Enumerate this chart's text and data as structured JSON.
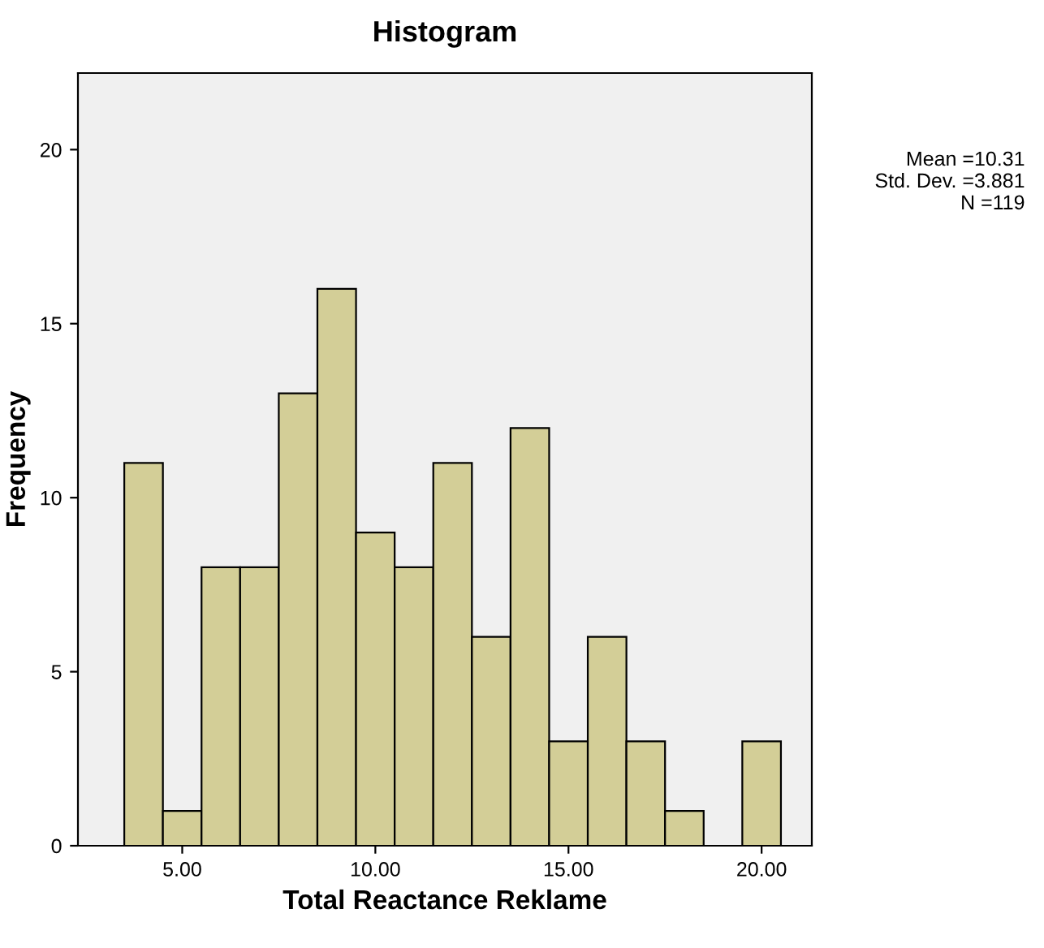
{
  "chart_data": {
    "type": "histogram",
    "title": "Histogram",
    "xlabel": "Total Reactance Reklame",
    "ylabel": "Frequency",
    "bins": [
      3.5,
      4.5,
      5.5,
      6.5,
      7.5,
      8.5,
      9.5,
      10.5,
      11.5,
      12.5,
      13.5,
      14.5,
      15.5,
      16.5,
      17.5,
      18.5,
      19.5,
      20.5
    ],
    "values": [
      11,
      1,
      8,
      8,
      13,
      16,
      9,
      8,
      11,
      6,
      12,
      3,
      6,
      3,
      1,
      0,
      3
    ],
    "color": "#d3ce97",
    "xlim": [
      2.3,
      21.3
    ],
    "xticks": [
      {
        "value": 5,
        "label": "5.00"
      },
      {
        "value": 10,
        "label": "10.00"
      },
      {
        "value": 15,
        "label": "15.00"
      },
      {
        "value": 20,
        "label": "20.00"
      }
    ],
    "ylim": [
      0,
      22.2
    ],
    "yticks": [
      0,
      5,
      10,
      15,
      20
    ],
    "grid": false,
    "annotations": [
      "Mean =10.31\nStd. Dev. =3.881\nN =119"
    ]
  }
}
